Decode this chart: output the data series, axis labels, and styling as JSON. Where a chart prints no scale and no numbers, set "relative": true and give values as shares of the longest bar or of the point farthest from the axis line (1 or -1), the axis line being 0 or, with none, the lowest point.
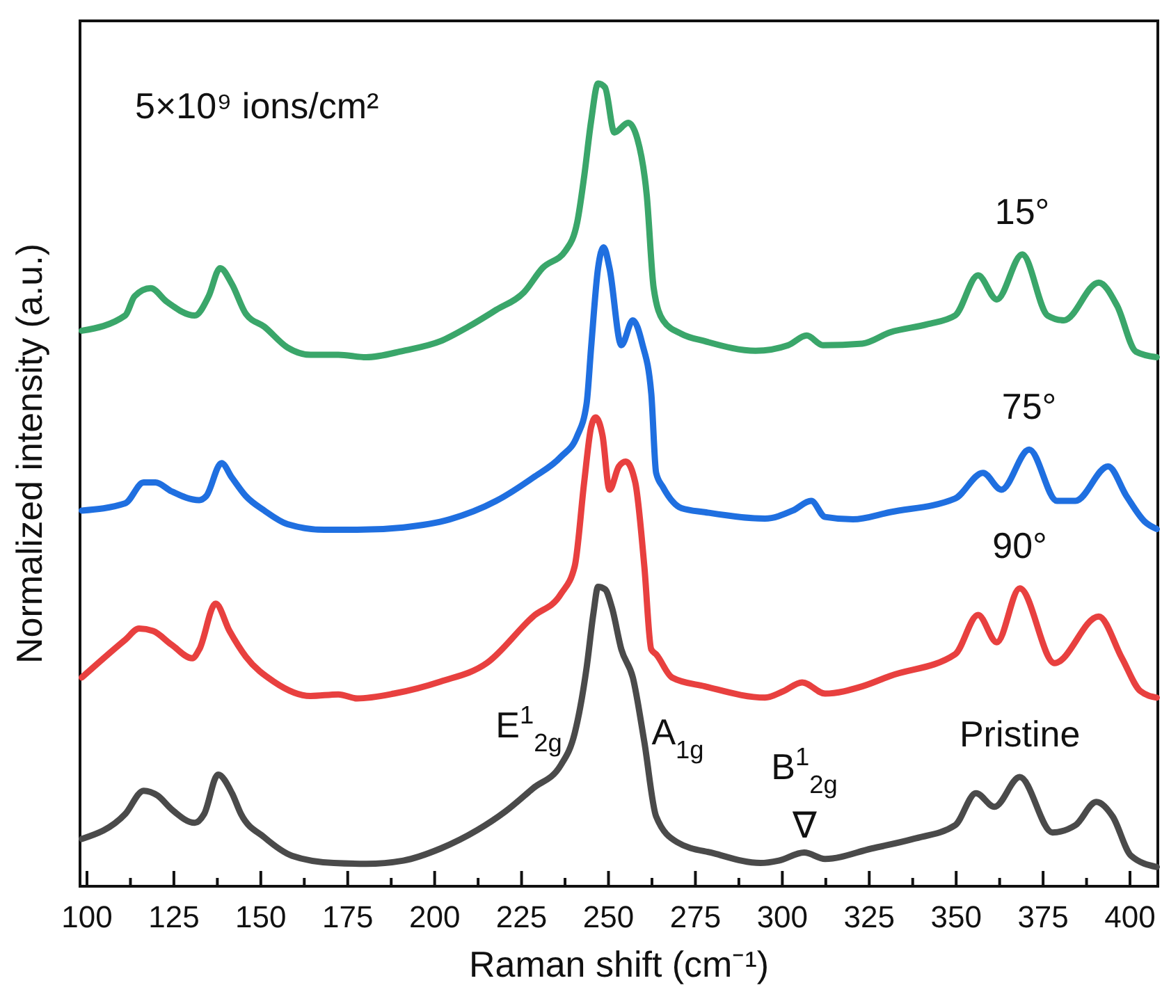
{
  "chart_data": {
    "type": "line",
    "relative": true,
    "xlabel": "Raman shift (cm⁻¹)",
    "ylabel": "Normalized intensity (a.u.)",
    "xlim": [
      98,
      408
    ],
    "xticks": [
      100,
      {
        "value": 112.5,
        "label": null
      },
      125,
      {
        "value": 137.5,
        "label": null
      },
      150,
      {
        "value": 162.5,
        "label": null
      },
      175,
      {
        "value": 187.5,
        "label": null
      },
      200,
      {
        "value": 212.5,
        "label": null
      },
      225,
      {
        "value": 237.5,
        "label": null
      },
      250,
      {
        "value": 262.5,
        "label": null
      },
      275,
      {
        "value": 287.5,
        "label": null
      },
      300,
      {
        "value": 312.5,
        "label": null
      },
      325,
      {
        "value": 337.5,
        "label": null
      },
      350,
      {
        "value": 362.5,
        "label": null
      },
      375,
      {
        "value": 387.5,
        "label": null
      },
      400
    ],
    "grid": false,
    "legend": false,
    "marker": "none",
    "line_style": "solid",
    "annotations": [
      "5×10⁹ ions/cm²",
      "E$^{1}$$_{2g}$",
      "A$_{1g}$",
      "B$^{1}$$_{2g}$",
      "∇"
    ],
    "series": [
      {
        "name": "Pristine",
        "color": "#4a4a4a",
        "x": [
          98.5,
          111,
          116.3,
          120.3,
          124.3,
          131,
          133.7,
          137.7,
          141.7,
          144.3,
          151,
          159,
          171,
          180.3,
          191,
          201.7,
          212.3,
          220.3,
          228.3,
          236.3,
          240.3,
          243.7,
          245.7,
          247,
          249,
          251,
          253.7,
          257,
          260.3,
          263.7,
          269.7,
          280.3,
          293.7,
          299,
          306.3,
          312.3,
          325.7,
          337.7,
          349.7,
          355.7,
          361,
          368.3,
          377.7,
          384.3,
          390.3,
          395,
          400.3,
          407.7
        ],
        "values": [
          0.059,
          0.09,
          0.119,
          0.113,
          0.096,
          0.079,
          0.09,
          0.139,
          0.116,
          0.09,
          0.061,
          0.038,
          0.029,
          0.028,
          0.032,
          0.047,
          0.07,
          0.093,
          0.122,
          0.151,
          0.191,
          0.272,
          0.341,
          0.373,
          0.37,
          0.347,
          0.295,
          0.26,
          0.18,
          0.087,
          0.055,
          0.041,
          0.029,
          0.032,
          0.042,
          0.034,
          0.047,
          0.059,
          0.076,
          0.116,
          0.099,
          0.136,
          0.067,
          0.076,
          0.105,
          0.087,
          0.038,
          0.024
        ]
      },
      {
        "name": "90°",
        "color": "#e8403f",
        "x": [
          98.5,
          111,
          115,
          119,
          124.3,
          130.3,
          132.3,
          137,
          141,
          145.7,
          153.7,
          164.3,
          172.3,
          177.7,
          188.3,
          201.7,
          215,
          228.3,
          236.3,
          240.3,
          243,
          245,
          246.3,
          248.3,
          250.3,
          253,
          255,
          257.7,
          260.3,
          262.3,
          263.7,
          268.3,
          277.7,
          295,
          300.3,
          305.7,
          312.3,
          323,
          331,
          349.7,
          356.3,
          361.7,
          368.3,
          378.3,
          391,
          397.7,
          403,
          407.7
        ],
        "values": [
          0.26,
          0.307,
          0.321,
          0.318,
          0.301,
          0.284,
          0.295,
          0.352,
          0.318,
          0.286,
          0.255,
          0.237,
          0.239,
          0.234,
          0.24,
          0.255,
          0.278,
          0.336,
          0.364,
          0.399,
          0.503,
          0.572,
          0.584,
          0.561,
          0.494,
          0.523,
          0.529,
          0.503,
          0.399,
          0.295,
          0.289,
          0.26,
          0.249,
          0.235,
          0.243,
          0.254,
          0.24,
          0.249,
          0.262,
          0.289,
          0.338,
          0.304,
          0.371,
          0.278,
          0.336,
          0.284,
          0.243,
          0.235
        ]
      },
      {
        "name": "75°",
        "color": "#1f6fe0",
        "x": [
          98.5,
          111,
          116.3,
          119.7,
          124.3,
          132.3,
          134.3,
          138.7,
          141.7,
          145.7,
          151,
          157.7,
          168.3,
          177.7,
          191,
          204.3,
          217.7,
          228.3,
          236.3,
          241,
          243.7,
          245,
          247,
          248.6,
          250.3,
          253.7,
          257,
          259.7,
          262.3,
          263.7,
          265.7,
          271,
          277.7,
          295,
          303,
          308.3,
          312.3,
          320.3,
          331,
          349.7,
          357.7,
          363,
          371,
          379,
          384.3,
          393.7,
          399,
          404.3,
          407.7
        ],
        "values": [
          0.468,
          0.477,
          0.503,
          0.503,
          0.492,
          0.481,
          0.486,
          0.527,
          0.509,
          0.486,
          0.468,
          0.451,
          0.444,
          0.444,
          0.447,
          0.457,
          0.48,
          0.509,
          0.535,
          0.561,
          0.601,
          0.671,
          0.77,
          0.796,
          0.77,
          0.674,
          0.705,
          0.676,
          0.614,
          0.515,
          0.497,
          0.471,
          0.466,
          0.458,
          0.468,
          0.48,
          0.46,
          0.457,
          0.466,
          0.483,
          0.515,
          0.494,
          0.544,
          0.48,
          0.48,
          0.523,
          0.486,
          0.454,
          0.445
        ]
      },
      {
        "name": "15°",
        "color": "#3aa66a",
        "x": [
          98.5,
          111,
          113.7,
          118.3,
          123,
          131,
          135,
          138.3,
          141.7,
          145.7,
          151,
          157.7,
          164.3,
          172.3,
          180.3,
          191,
          201.7,
          209.7,
          217.7,
          225.7,
          231,
          237.7,
          241,
          243,
          245,
          247,
          249,
          251.7,
          255.7,
          258.3,
          261,
          263,
          265.7,
          271,
          277.7,
          292.3,
          301.7,
          307,
          311.7,
          323,
          331,
          341.7,
          349.7,
          356.3,
          361.7,
          369,
          376.3,
          381,
          391,
          396.3,
          401.7,
          407.7
        ],
        "values": [
          0.692,
          0.711,
          0.735,
          0.745,
          0.728,
          0.711,
          0.735,
          0.77,
          0.75,
          0.713,
          0.697,
          0.671,
          0.662,
          0.662,
          0.659,
          0.667,
          0.679,
          0.697,
          0.718,
          0.74,
          0.77,
          0.792,
          0.827,
          0.884,
          0.953,
          1,
          0.995,
          0.939,
          0.951,
          0.931,
          0.861,
          0.745,
          0.705,
          0.688,
          0.679,
          0.667,
          0.674,
          0.686,
          0.674,
          0.676,
          0.69,
          0.7,
          0.711,
          0.761,
          0.731,
          0.787,
          0.711,
          0.705,
          0.752,
          0.723,
          0.666,
          0.659
        ]
      }
    ]
  }
}
